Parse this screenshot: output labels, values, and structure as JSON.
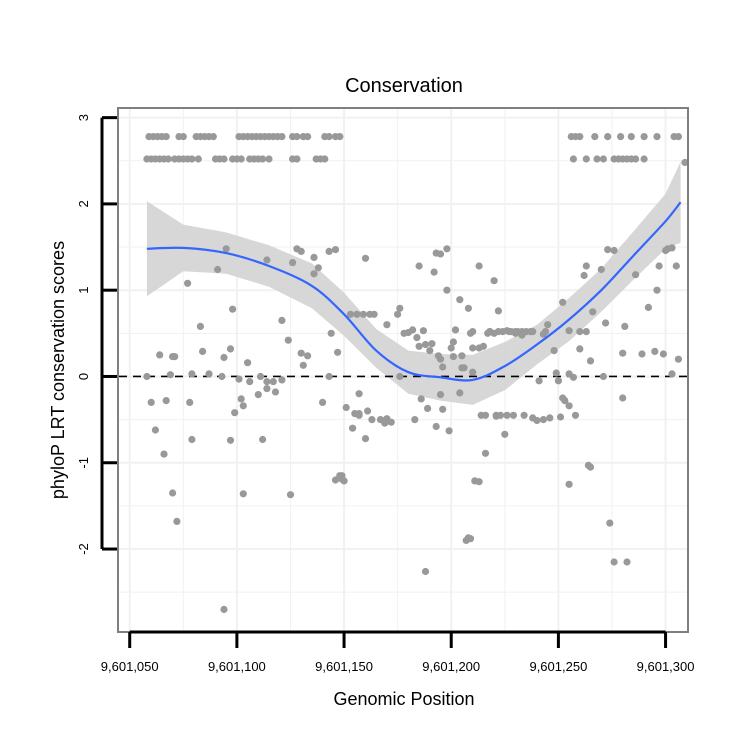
{
  "chart_data": {
    "type": "scatter",
    "title": "Conservation",
    "xlabel": "Genomic Position",
    "ylabel": "phyloP LRT conservation scores",
    "xlim": [
      9601045,
      9601310
    ],
    "ylim": [
      -2.95,
      3.1
    ],
    "xticks": [
      9601050,
      9601100,
      9601150,
      9601200,
      9601250,
      9601300
    ],
    "xtick_labels": [
      "9,601,050",
      "9,601,100",
      "9,601,150",
      "9,601,200",
      "9,601,250",
      "9,601,300"
    ],
    "yticks": [
      -2,
      -1,
      0,
      1,
      2,
      3
    ],
    "ytick_labels": [
      "-2",
      "-1",
      "0",
      "1",
      "2",
      "3"
    ],
    "reference_line": {
      "y": 0,
      "style": "dashed"
    },
    "colors": {
      "points": "#999999",
      "smooth": "#3366ff",
      "band": "#d3d3d3",
      "grid": "#f1f1f1",
      "frame": "#7f7f7f"
    },
    "smooth": {
      "method": "loess",
      "x": [
        9601058,
        9601075,
        9601095,
        9601115,
        9601135,
        9601150,
        9601165,
        9601180,
        9601195,
        9601210,
        9601225,
        9601240,
        9601255,
        9601270,
        9601285,
        9601300,
        9601307
      ],
      "y": [
        1.48,
        1.49,
        1.43,
        1.28,
        1.05,
        0.72,
        0.3,
        0.05,
        -0.01,
        -0.04,
        0.12,
        0.37,
        0.66,
        1.0,
        1.4,
        1.8,
        2.02
      ],
      "lower": [
        0.93,
        1.22,
        1.19,
        1.04,
        0.79,
        0.47,
        0.1,
        -0.2,
        -0.28,
        -0.33,
        -0.16,
        0.14,
        0.41,
        0.75,
        1.12,
        1.48,
        1.55
      ],
      "upper": [
        2.03,
        1.76,
        1.67,
        1.52,
        1.31,
        0.97,
        0.55,
        0.3,
        0.26,
        0.25,
        0.4,
        0.6,
        0.91,
        1.25,
        1.68,
        2.12,
        2.49
      ]
    },
    "points": {
      "x": [
        9601059,
        9601061,
        9601063,
        9601065,
        9601067,
        9601073,
        9601075,
        9601081,
        9601083,
        9601085,
        9601087,
        9601089,
        9601101,
        9601103,
        9601105,
        9601107,
        9601109,
        9601111,
        9601113,
        9601115,
        9601117,
        9601119,
        9601121,
        9601126,
        9601128,
        9601131,
        9601133,
        9601141,
        9601143,
        9601146,
        9601148,
        9601058,
        9601060,
        9601062,
        9601064,
        9601066,
        9601068,
        9601071,
        9601073,
        9601075,
        9601077,
        9601079,
        9601082,
        9601090,
        9601092,
        9601094,
        9601098,
        9601100,
        9601102,
        9601106,
        9601108,
        9601110,
        9601112,
        9601115,
        9601126,
        9601128,
        9601137,
        9601139,
        9601141,
        9601256,
        9601258,
        9601260,
        9601267,
        9601273,
        9601279,
        9601284,
        9601290,
        9601296,
        9601304,
        9601306,
        9601257,
        9601263,
        9601268,
        9601271,
        9601276,
        9601278,
        9601280,
        9601282,
        9601284,
        9601286,
        9601290,
        9601095,
        9601128,
        9601130,
        9601136,
        9601143,
        9601198,
        9601195,
        9601213,
        9601220,
        9601263,
        9601273,
        9601301,
        9601303,
        9601309,
        9601193,
        9601146,
        9601136,
        9601126,
        9601160,
        9601185,
        9601192,
        9601198,
        9601204,
        9601208,
        9601222,
        9601226,
        9601238,
        9601260,
        9601272,
        9601281,
        9601292,
        9601296,
        9601064,
        9601071,
        9601077,
        9601083,
        9601091,
        9601098,
        9601105,
        9601114,
        9601121,
        9601130,
        9601138,
        9601176,
        9601182,
        9601188,
        9601194,
        9601202,
        9601210,
        9601218,
        9601230,
        9601243,
        9601252,
        9601262,
        9601276,
        9601297,
        9601060,
        9601067,
        9601070,
        9601084,
        9601087,
        9601094,
        9601097,
        9601101,
        9601106,
        9601110,
        9601117,
        9601124,
        9601133,
        9601144,
        9601185,
        9601196,
        9601205,
        9601249,
        9601255,
        9601265,
        9601280,
        9601289,
        9601299,
        9601306,
        9601058,
        9601062,
        9601069,
        9601079,
        9601093,
        9601099,
        9601103,
        9601111,
        9601114,
        9601118,
        9601121,
        9601131,
        9601143,
        9601151,
        9601155,
        9601157,
        9601161,
        9601170,
        9601172,
        9601176,
        9601186,
        9601196,
        9601204,
        9601221,
        9601223,
        9601226,
        9601229,
        9601234,
        9601238,
        9601243,
        9601246,
        9601251,
        9601255,
        9601258,
        9601271,
        9601066,
        9601072,
        9601079,
        9601102,
        9601112,
        9601150,
        9601154,
        9601160,
        9601163,
        9601167,
        9601183,
        9601193,
        9601199,
        9601216,
        9601221,
        9601240,
        9601252,
        9601253,
        9601257,
        9601280,
        9601070,
        9601078,
        9601097,
        9601103,
        9601114,
        9601125,
        9601140,
        9601146,
        9601149,
        9601157,
        9601169,
        9601189,
        9601195,
        9601208,
        9601211,
        9601225,
        9601265,
        9601274,
        9601282,
        9601094,
        9601188,
        9601207,
        9601209,
        9601213,
        9601264,
        9601276,
        9601149,
        9601148,
        9601157,
        9601214,
        9601216,
        9601209,
        9601206,
        9601213,
        9601217,
        9601220,
        9601222,
        9601224,
        9601227,
        9601231,
        9601235,
        9601237,
        9601244,
        9601147,
        9601153,
        9601159,
        9601164,
        9601175,
        9601180,
        9601187,
        9601200,
        9601210,
        9601230,
        9601191,
        9601201,
        9601215,
        9601228,
        9601233,
        9601245,
        9601255,
        9601263,
        9601300,
        9601303,
        9601305,
        9601295,
        9601286,
        9601270,
        9601250,
        9601255,
        9601156,
        9601162,
        9601170,
        9601178,
        9601184,
        9601190,
        9601195,
        9601201,
        9601205,
        9601210,
        9601218,
        9601233,
        9601241,
        9601248,
        9601260,
        9601266
      ],
      "y": [
        2.78,
        2.78,
        2.78,
        2.78,
        2.78,
        2.78,
        2.78,
        2.78,
        2.78,
        2.78,
        2.78,
        2.78,
        2.78,
        2.78,
        2.78,
        2.78,
        2.78,
        2.78,
        2.78,
        2.78,
        2.78,
        2.78,
        2.78,
        2.78,
        2.78,
        2.78,
        2.78,
        2.78,
        2.78,
        2.78,
        2.78,
        2.52,
        2.52,
        2.52,
        2.52,
        2.52,
        2.52,
        2.52,
        2.52,
        2.52,
        2.52,
        2.52,
        2.52,
        2.52,
        2.52,
        2.52,
        2.52,
        2.52,
        2.52,
        2.52,
        2.52,
        2.52,
        2.52,
        2.52,
        2.52,
        2.52,
        2.52,
        2.52,
        2.52,
        2.78,
        2.78,
        2.78,
        2.78,
        2.78,
        2.78,
        2.78,
        2.78,
        2.78,
        2.78,
        2.78,
        2.52,
        2.52,
        2.52,
        2.52,
        2.52,
        2.52,
        2.52,
        2.52,
        2.52,
        2.52,
        2.52,
        1.48,
        1.48,
        1.45,
        1.38,
        1.45,
        1.48,
        1.42,
        1.28,
        1.11,
        1.28,
        1.47,
        1.48,
        1.49,
        2.48,
        1.43,
        1.47,
        1.19,
        1.32,
        1.37,
        1.28,
        1.21,
        1.0,
        0.89,
        0.79,
        0.76,
        0.53,
        0.52,
        0.52,
        0.62,
        0.58,
        0.8,
        1.0,
        0.25,
        0.23,
        1.08,
        0.58,
        1.24,
        0.78,
        0.16,
        1.35,
        0.65,
        0.27,
        1.26,
        0.79,
        0.54,
        0.37,
        0.24,
        0.54,
        0.52,
        0.52,
        0.52,
        0.49,
        0.86,
        1.17,
        1.46,
        1.28,
        -0.3,
        -0.28,
        0.23,
        0.29,
        0.03,
        0.22,
        0.32,
        -0.03,
        -0.06,
        -0.21,
        -0.06,
        0.42,
        0.24,
        0.5,
        0.35,
        0.11,
        0.24,
        0.04,
        0.03,
        0.18,
        0.27,
        0.26,
        0.26,
        0.2,
        0.0,
        -0.62,
        0.02,
        0.03,
        0.0,
        -0.42,
        -0.34,
        0.0,
        -0.06,
        -0.18,
        -0.04,
        0.13,
        0.0,
        -0.36,
        -0.43,
        -0.45,
        -0.4,
        -0.49,
        -0.53,
        0.0,
        -0.26,
        -0.38,
        -0.19,
        -0.45,
        -0.45,
        -0.45,
        -0.45,
        -0.45,
        -0.48,
        -0.5,
        -0.48,
        -0.47,
        -0.34,
        -0.45,
        0.0,
        -0.9,
        -1.68,
        -0.73,
        -0.26,
        -0.73,
        -1.21,
        -0.6,
        -0.72,
        -0.5,
        -0.5,
        -0.5,
        -0.58,
        -0.63,
        -0.89,
        -0.46,
        -0.51,
        -0.25,
        -0.28,
        -0.01,
        -0.25,
        -1.35,
        -0.3,
        -0.74,
        -1.36,
        -0.14,
        -1.37,
        -0.3,
        -1.2,
        -1.15,
        -0.43,
        -0.54,
        -0.37,
        -0.21,
        -1.87,
        -1.21,
        -0.67,
        -1.05,
        -1.7,
        -2.15,
        -2.7,
        -2.26,
        -1.9,
        -1.88,
        -1.22,
        -1.03,
        -2.15,
        -1.19,
        -1.15,
        -0.2,
        -0.45,
        -0.45,
        0.5,
        0.1,
        0.33,
        0.5,
        0.5,
        0.52,
        0.52,
        0.52,
        0.52,
        0.52,
        0.52,
        0.52,
        0.28,
        0.72,
        0.72,
        0.72,
        0.72,
        0.51,
        0.53,
        0.33,
        0.33,
        0.5,
        0.38,
        0.23,
        0.35,
        0.52,
        0.52,
        0.6,
        0.53,
        0.52,
        1.46,
        0.03,
        1.28,
        0.29,
        1.18,
        1.24,
        -0.05,
        -1.25,
        0.72,
        0.72,
        0.6,
        0.5,
        0.45,
        0.3,
        0.2,
        0.4,
        0.1,
        0.05,
        0.52,
        0.48,
        -0.05,
        0.3,
        0.32,
        0.75
      ]
    }
  }
}
